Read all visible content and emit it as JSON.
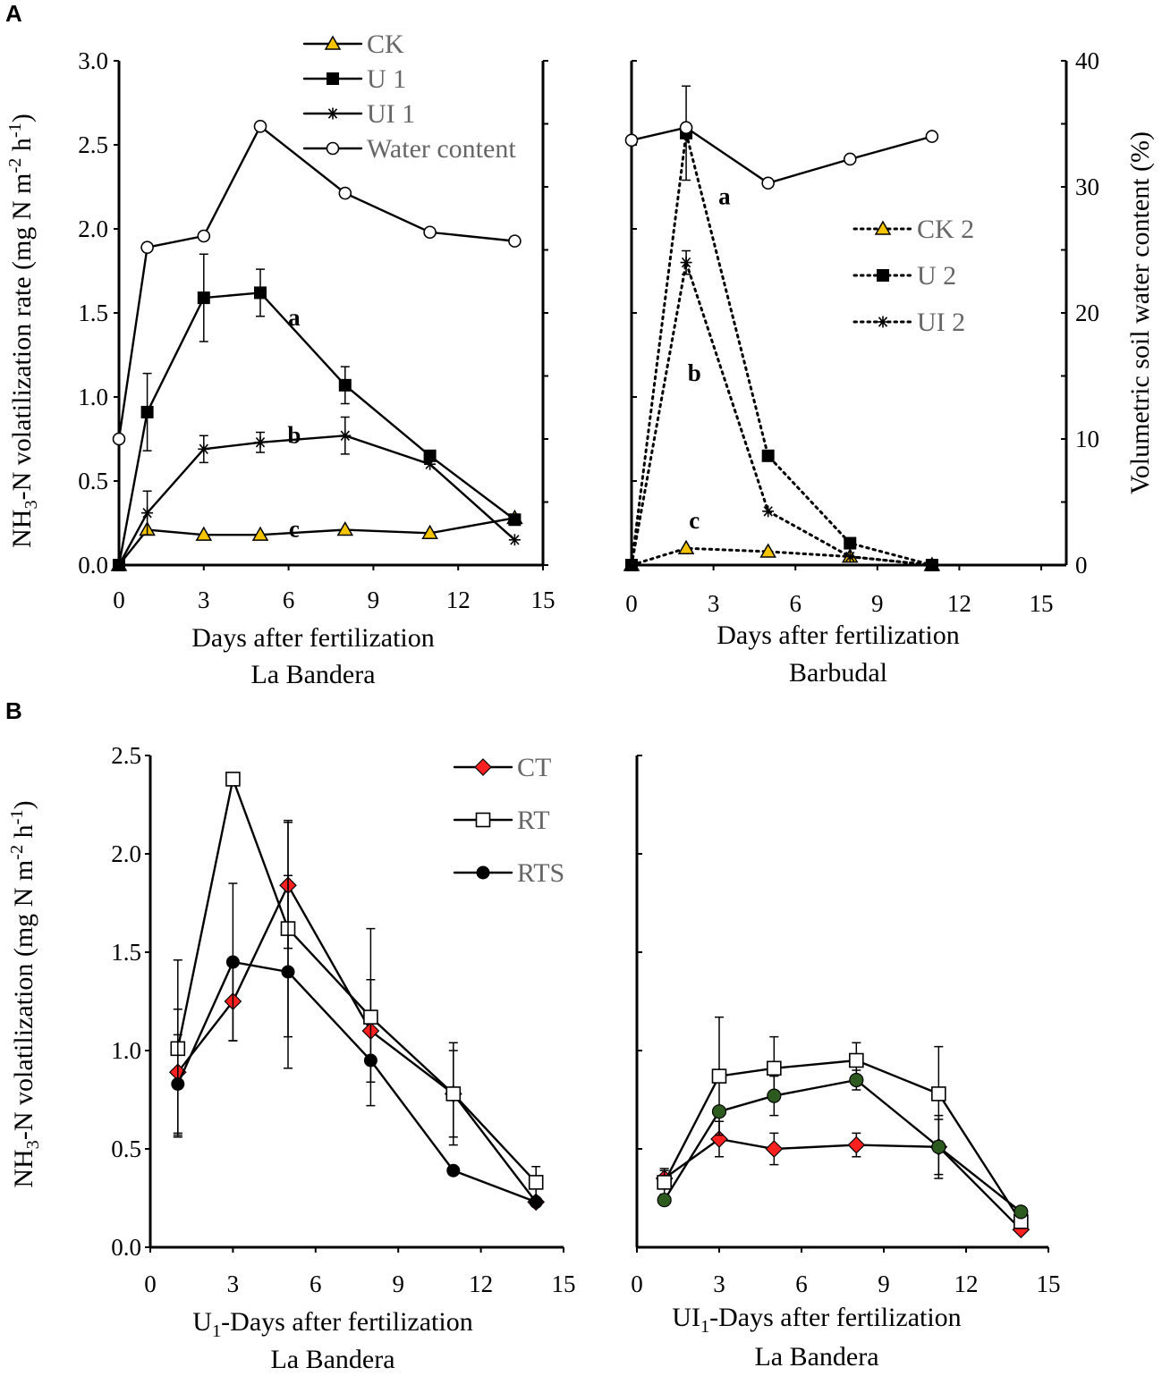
{
  "panel_labels": {
    "A": "A",
    "B": "B"
  },
  "colors": {
    "ck_fill": "#f5c400",
    "ct_fill": "#ff2020",
    "rts_green": "#2d5a1f",
    "line": "#000000"
  },
  "chart_data": [
    {
      "id": "A_left",
      "type": "line",
      "xlabel": "Days after fertilization",
      "subtitle": "La Bandera",
      "ylabel": "NH3-N volatilization rate (mg N m-2 h-1)",
      "ylabel_parts": {
        "main": "NH",
        "sub1": "3",
        "mid": "-N volatilization rate (mg N m",
        "sup1": "-2",
        "mid2": " h",
        "sup2": "-1",
        "end": ")"
      },
      "xlim": [
        0,
        15
      ],
      "ylim": [
        0,
        3.0
      ],
      "xticks": [
        "0",
        "3",
        "6",
        "9",
        "12",
        "15"
      ],
      "yticks": [
        "0.0",
        "0.5",
        "1.0",
        "1.5",
        "2.0",
        "2.5",
        "3.0"
      ],
      "y2lim": [
        0,
        40
      ],
      "legend_position": "top",
      "series": [
        {
          "name": "CK",
          "marker": "triangle",
          "style": "solid",
          "axis": "left",
          "x": [
            0,
            1,
            3,
            5,
            8,
            11,
            14
          ],
          "values": [
            0.0,
            0.21,
            0.18,
            0.18,
            0.21,
            0.19,
            0.28
          ],
          "errors": [
            0,
            0,
            0,
            0,
            0,
            0,
            0
          ]
        },
        {
          "name": "U 1",
          "marker": "square-filled",
          "style": "solid",
          "axis": "left",
          "x": [
            0,
            1,
            3,
            5,
            8,
            11,
            14
          ],
          "values": [
            0.0,
            0.91,
            1.59,
            1.62,
            1.07,
            0.65,
            0.27
          ],
          "errors": [
            0,
            0.23,
            0.26,
            0.14,
            0.11,
            0,
            0
          ]
        },
        {
          "name": "UI 1",
          "marker": "asterisk",
          "style": "solid",
          "axis": "left",
          "x": [
            0,
            1,
            3,
            5,
            8,
            11,
            14
          ],
          "values": [
            0.0,
            0.31,
            0.69,
            0.73,
            0.77,
            0.6,
            0.15
          ],
          "errors": [
            0,
            0.13,
            0.08,
            0.06,
            0.11,
            0,
            0
          ]
        },
        {
          "name": "Water content",
          "marker": "circle-open",
          "style": "solid",
          "axis": "right",
          "x": [
            0,
            1,
            3,
            5,
            8,
            11,
            14
          ],
          "values": [
            10.0,
            25.2,
            26.1,
            34.8,
            29.5,
            26.4,
            25.7
          ],
          "errors": [
            0,
            0,
            0,
            0,
            0,
            0,
            0
          ]
        }
      ],
      "annotations": [
        {
          "text": "a",
          "x": 6.2,
          "y": 1.48
        },
        {
          "text": "b",
          "x": 6.2,
          "y": 0.78
        },
        {
          "text": "c",
          "x": 6.2,
          "y": 0.22
        }
      ]
    },
    {
      "id": "A_right",
      "type": "line",
      "xlabel": "Days after fertilization",
      "subtitle": "Barbudal",
      "y2label": "Volumetric soil water content (%)",
      "xlim": [
        0,
        15
      ],
      "ylim": [
        0,
        3.0
      ],
      "xticks": [
        "0",
        "3",
        "6",
        "9",
        "12",
        "15"
      ],
      "y2lim": [
        0,
        40
      ],
      "y2ticks": [
        "0",
        "10",
        "20",
        "30",
        "40"
      ],
      "legend_position": "right",
      "series": [
        {
          "name": "CK 2",
          "marker": "triangle",
          "style": "dotted",
          "axis": "left",
          "x": [
            0,
            2,
            5,
            8,
            11
          ],
          "values": [
            0.0,
            0.1,
            0.08,
            0.05,
            0.0
          ],
          "errors": [
            0,
            0,
            0,
            0,
            0
          ]
        },
        {
          "name": "U 2",
          "marker": "square-filled",
          "style": "dotted",
          "axis": "left",
          "x": [
            0,
            2,
            5,
            8,
            11
          ],
          "values": [
            0.0,
            2.57,
            0.65,
            0.13,
            0.0
          ],
          "errors": [
            0,
            0.28,
            0,
            0,
            0
          ]
        },
        {
          "name": "UI 2",
          "marker": "asterisk",
          "style": "dotted",
          "axis": "left",
          "x": [
            0,
            2,
            5,
            8,
            11
          ],
          "values": [
            0.0,
            1.8,
            0.32,
            0.05,
            0.0
          ],
          "errors": [
            0,
            0.07,
            0,
            0,
            0
          ]
        },
        {
          "name": "Water content",
          "marker": "circle-open",
          "style": "solid",
          "axis": "right",
          "in_legend": false,
          "x": [
            0,
            2,
            5,
            8,
            11
          ],
          "values": [
            33.7,
            34.7,
            30.3,
            32.2,
            34.0
          ],
          "errors": [
            0,
            0,
            0,
            0,
            0
          ]
        }
      ],
      "annotations": [
        {
          "text": "a",
          "x": 3.4,
          "y": 2.2
        },
        {
          "text": "b",
          "x": 2.3,
          "y": 1.15
        },
        {
          "text": "c",
          "x": 2.3,
          "y": 0.27
        }
      ]
    },
    {
      "id": "B_left",
      "type": "line",
      "xlabel_parts": {
        "main": "U",
        "sub": "1",
        "end": "-Days after fertilization"
      },
      "xlabel": "U1-Days after fertilization",
      "subtitle": "La Bandera",
      "ylabel": "NH3-N volatilization (mg N m-2 h-1)",
      "ylabel_parts": {
        "main": "NH",
        "sub1": "3",
        "mid": "-N volatilization (mg N m",
        "sup1": "-2",
        "mid2": " h",
        "sup2": "-1",
        "end": ")"
      },
      "xlim": [
        0,
        15
      ],
      "ylim": [
        0,
        2.5
      ],
      "xticks": [
        "0",
        "3",
        "6",
        "9",
        "12",
        "15"
      ],
      "yticks": [
        "0.0",
        "0.5",
        "1.0",
        "1.5",
        "2.0",
        "2.5"
      ],
      "legend_position": "top-right",
      "series": [
        {
          "name": "CT",
          "marker": "diamond-red",
          "style": "solid",
          "axis": "left",
          "x": [
            1,
            3,
            5,
            8,
            11,
            14
          ],
          "values": [
            0.89,
            1.25,
            1.84,
            1.1,
            0.78,
            0.23
          ],
          "errors": [
            0.32,
            0.2,
            0.32,
            0.26,
            0.22,
            0.0
          ]
        },
        {
          "name": "RT",
          "marker": "square-open",
          "style": "solid",
          "axis": "left",
          "x": [
            1,
            3,
            5,
            8,
            11,
            14
          ],
          "values": [
            1.01,
            2.38,
            1.62,
            1.17,
            0.78,
            0.33
          ],
          "errors": [
            0.45,
            0.03,
            0.55,
            0.45,
            0.26,
            0.08
          ]
        },
        {
          "name": "RTS",
          "marker": "circle-black",
          "style": "solid",
          "axis": "left",
          "x": [
            1,
            3,
            5,
            8,
            11,
            14
          ],
          "values": [
            0.83,
            1.45,
            1.4,
            0.95,
            0.39,
            0.23
          ],
          "errors": [
            0.25,
            0.4,
            0.49,
            0.0,
            0.0,
            0.0
          ]
        }
      ]
    },
    {
      "id": "B_right",
      "type": "line",
      "xlabel_parts": {
        "main": "UI",
        "sub": "1",
        "end": "-Days after fertilization"
      },
      "xlabel": "UI1-Days after fertilization",
      "subtitle": "La Bandera",
      "xlim": [
        0,
        15
      ],
      "ylim": [
        0,
        2.5
      ],
      "xticks": [
        "0",
        "3",
        "6",
        "9",
        "12",
        "15"
      ],
      "series": [
        {
          "name": "CT",
          "marker": "diamond-red",
          "style": "solid",
          "axis": "left",
          "x": [
            1,
            3,
            5,
            8,
            11,
            14
          ],
          "values": [
            0.35,
            0.55,
            0.5,
            0.52,
            0.51,
            0.09
          ],
          "errors": [
            0.05,
            0.09,
            0.08,
            0.06,
            0.16,
            0.0
          ]
        },
        {
          "name": "RT",
          "marker": "square-open",
          "style": "solid",
          "axis": "left",
          "x": [
            1,
            3,
            5,
            8,
            11,
            14
          ],
          "values": [
            0.33,
            0.87,
            0.91,
            0.95,
            0.78,
            0.13
          ],
          "errors": [
            0.06,
            0.3,
            0.16,
            0.09,
            0.24,
            0.0
          ]
        },
        {
          "name": "RTS",
          "marker": "circle-green",
          "style": "solid",
          "axis": "left",
          "x": [
            1,
            3,
            5,
            8,
            11,
            14
          ],
          "values": [
            0.24,
            0.69,
            0.77,
            0.85,
            0.51,
            0.18
          ],
          "errors": [
            0.0,
            0.0,
            0.1,
            0.05,
            0.14,
            0.0
          ]
        }
      ]
    }
  ]
}
